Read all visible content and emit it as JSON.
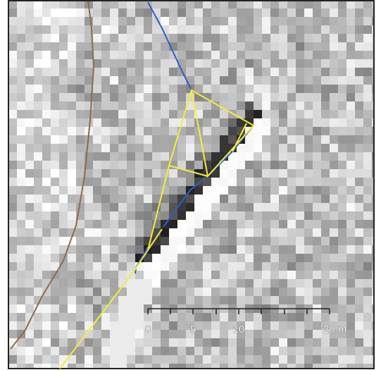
{
  "scale_bar": {
    "labels": [
      "0",
      "5",
      "10",
      "20 m"
    ]
  }
}
